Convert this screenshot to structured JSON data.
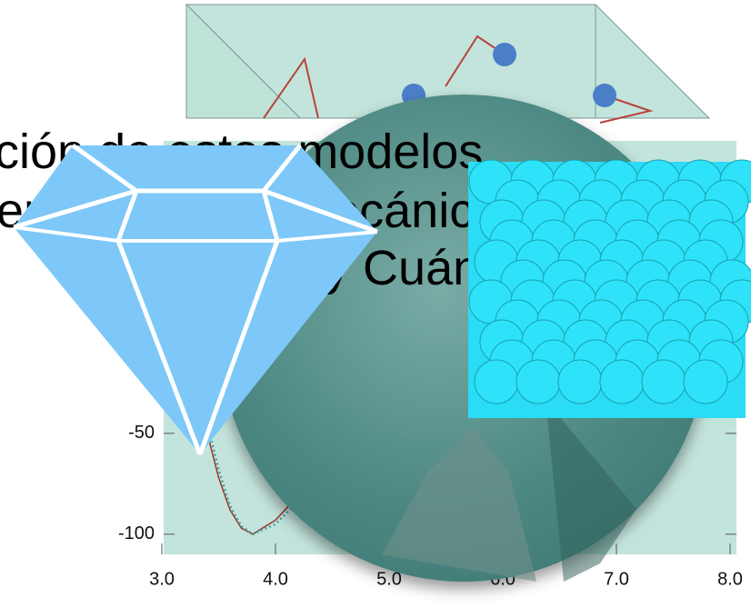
{
  "slide_text": {
    "lines": [
      "ción de estos modelos",
      "empíricos en Mecánica",
      "Clásica y Cuántica"
    ]
  },
  "chart_data": {
    "type": "line",
    "x": [
      3.4,
      3.5,
      3.6,
      3.7,
      3.8,
      4.0,
      4.3,
      4.6,
      5.0
    ],
    "series": [
      {
        "color": "#a0322a",
        "style": "solid",
        "values": [
          -50,
          -72,
          -88,
          -97,
          -100,
          -93,
          -75,
          -58,
          -42
        ]
      },
      {
        "color": "#3aa5a0",
        "style": "dotted",
        "values": [
          -45,
          -68,
          -86,
          -96,
          -100,
          -95,
          -78,
          -61,
          -44
        ]
      }
    ],
    "xlim": [
      3.0,
      8.0
    ],
    "xticks": [
      {
        "value": 3,
        "label": "3.0"
      },
      {
        "value": 4,
        "label": "4.0"
      },
      {
        "value": 5,
        "label": "5.0"
      },
      {
        "value": 6,
        "label": "6.0"
      },
      {
        "value": 7,
        "label": "7.0"
      },
      {
        "value": 8,
        "label": "8.0"
      }
    ],
    "ylim": [
      -110,
      95
    ],
    "yticks": [
      -100,
      -50
    ]
  }
}
